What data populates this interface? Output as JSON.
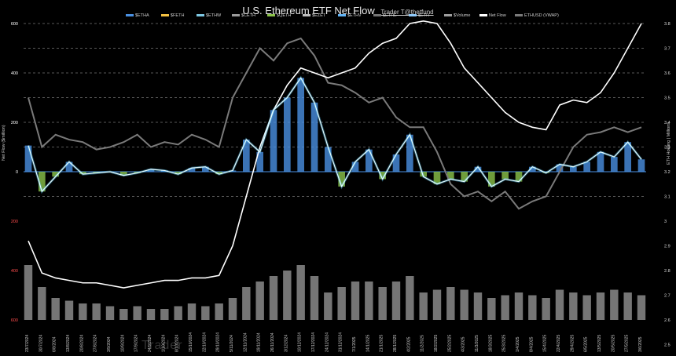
{
  "header": {
    "title": "U.S. Ethereum ETF Net Flow",
    "subtitle": "Trader T@thetfund"
  },
  "watermark": "Trader",
  "legend": [
    {
      "label": "$ETHA",
      "color": "#4a90e2"
    },
    {
      "label": "$FETH",
      "color": "#f5c242"
    },
    {
      "label": "$ETHW",
      "color": "#7ec8e3"
    },
    {
      "label": "$CETH",
      "color": "#9b9b9b"
    },
    {
      "label": "$QETH",
      "color": "#8bc34a"
    },
    {
      "label": "$EZET",
      "color": "#bdbdbd"
    },
    {
      "label": "$ETHV",
      "color": "#64b5f6"
    },
    {
      "label": "$ETHE",
      "color": "#757575"
    },
    {
      "label": "$ETH",
      "color": "#90caf9"
    },
    {
      "label": "$Volume",
      "color": "#9e9e9e"
    },
    {
      "label": "Net Flow",
      "color": "#ffffff"
    },
    {
      "label": "ETHUSD (VWAP)",
      "color": "#7a7a7a"
    }
  ],
  "chart_data": {
    "type": "bar",
    "title": "U.S. Ethereum ETF Net Flow",
    "ylabel": "Net Flow ($million)",
    "y2label": "ETH Holding | Millions",
    "ylim": [
      -600,
      600
    ],
    "y2lim": [
      2.6,
      3.8
    ],
    "left_ticks": [
      "600",
      "400",
      "200",
      "0",
      "200",
      "400",
      "600"
    ],
    "left_tick_colors": [
      "#ffffff",
      "#ffffff",
      "#ffffff",
      "#ffffff",
      "#ff4d4d",
      "#ff4d4d",
      "#ff4d4d"
    ],
    "right_ticks": [
      "3.8",
      "3.7",
      "3.6",
      "3.5",
      "3.4",
      "3.3",
      "3.2",
      "3.1",
      "3",
      "2.9",
      "2.8",
      "2.7",
      "2.6",
      "2.5"
    ],
    "categories": [
      "23/7/2024",
      "30/7/2024",
      "6/8/2024",
      "13/8/2024",
      "20/8/2024",
      "27/8/2024",
      "3/9/2024",
      "10/9/2024",
      "17/9/2024",
      "24/9/2024",
      "1/10/2024",
      "8/10/2024",
      "15/10/2024",
      "22/10/2024",
      "29/10/2024",
      "5/11/2024",
      "12/11/2024",
      "19/11/2024",
      "26/11/2024",
      "3/12/2024",
      "10/12/2024",
      "17/12/2024",
      "24/12/2024",
      "31/12/2024",
      "7/1/2025",
      "14/1/2025",
      "21/1/2025",
      "28/1/2025",
      "4/2/2025",
      "11/2/2025",
      "18/2/2025",
      "25/2/2025",
      "4/3/2025",
      "11/3/2025",
      "18/3/2025",
      "25/3/2025",
      "1/4/2025",
      "8/4/2025",
      "15/4/2025",
      "22/4/2025",
      "29/4/2025",
      "6/5/2025",
      "13/5/2025",
      "20/5/2025",
      "27/5/2025",
      "3/6/2025"
    ],
    "net_flow": [
      106,
      -80,
      -20,
      40,
      -10,
      -5,
      0,
      -15,
      -5,
      10,
      5,
      -10,
      15,
      20,
      -10,
      5,
      130,
      80,
      250,
      300,
      380,
      280,
      100,
      -60,
      40,
      90,
      -30,
      70,
      150,
      -20,
      -50,
      -30,
      -40,
      20,
      -60,
      -30,
      -40,
      20,
      -5,
      30,
      20,
      40,
      80,
      60,
      120,
      50
    ],
    "eth_holding": [
      2.92,
      2.79,
      2.77,
      2.76,
      2.75,
      2.75,
      2.74,
      2.73,
      2.74,
      2.75,
      2.76,
      2.76,
      2.77,
      2.77,
      2.78,
      2.9,
      3.1,
      3.3,
      3.45,
      3.55,
      3.62,
      3.6,
      3.58,
      3.6,
      3.62,
      3.68,
      3.72,
      3.74,
      3.8,
      3.81,
      3.8,
      3.72,
      3.62,
      3.56,
      3.5,
      3.44,
      3.4,
      3.38,
      3.37,
      3.47,
      3.49,
      3.48,
      3.52,
      3.6,
      3.7,
      3.8
    ],
    "ethusd_vwap": [
      3.5,
      3.3,
      3.35,
      3.33,
      3.32,
      3.29,
      3.3,
      3.32,
      3.35,
      3.3,
      3.32,
      3.31,
      3.35,
      3.33,
      3.3,
      3.5,
      3.6,
      3.7,
      3.65,
      3.72,
      3.74,
      3.67,
      3.56,
      3.55,
      3.52,
      3.48,
      3.5,
      3.42,
      3.38,
      3.38,
      3.28,
      3.15,
      3.1,
      3.12,
      3.08,
      3.12,
      3.05,
      3.08,
      3.1,
      3.2,
      3.3,
      3.35,
      3.36,
      3.38,
      3.36,
      3.38
    ],
    "volume": [
      1.0,
      0.6,
      0.4,
      0.35,
      0.3,
      0.3,
      0.25,
      0.2,
      0.25,
      0.2,
      0.2,
      0.25,
      0.3,
      0.25,
      0.3,
      0.4,
      0.6,
      0.7,
      0.8,
      0.9,
      1.0,
      0.8,
      0.5,
      0.6,
      0.7,
      0.7,
      0.6,
      0.7,
      0.8,
      0.5,
      0.55,
      0.6,
      0.55,
      0.5,
      0.4,
      0.45,
      0.5,
      0.45,
      0.4,
      0.55,
      0.5,
      0.45,
      0.5,
      0.55,
      0.5,
      0.45
    ]
  }
}
